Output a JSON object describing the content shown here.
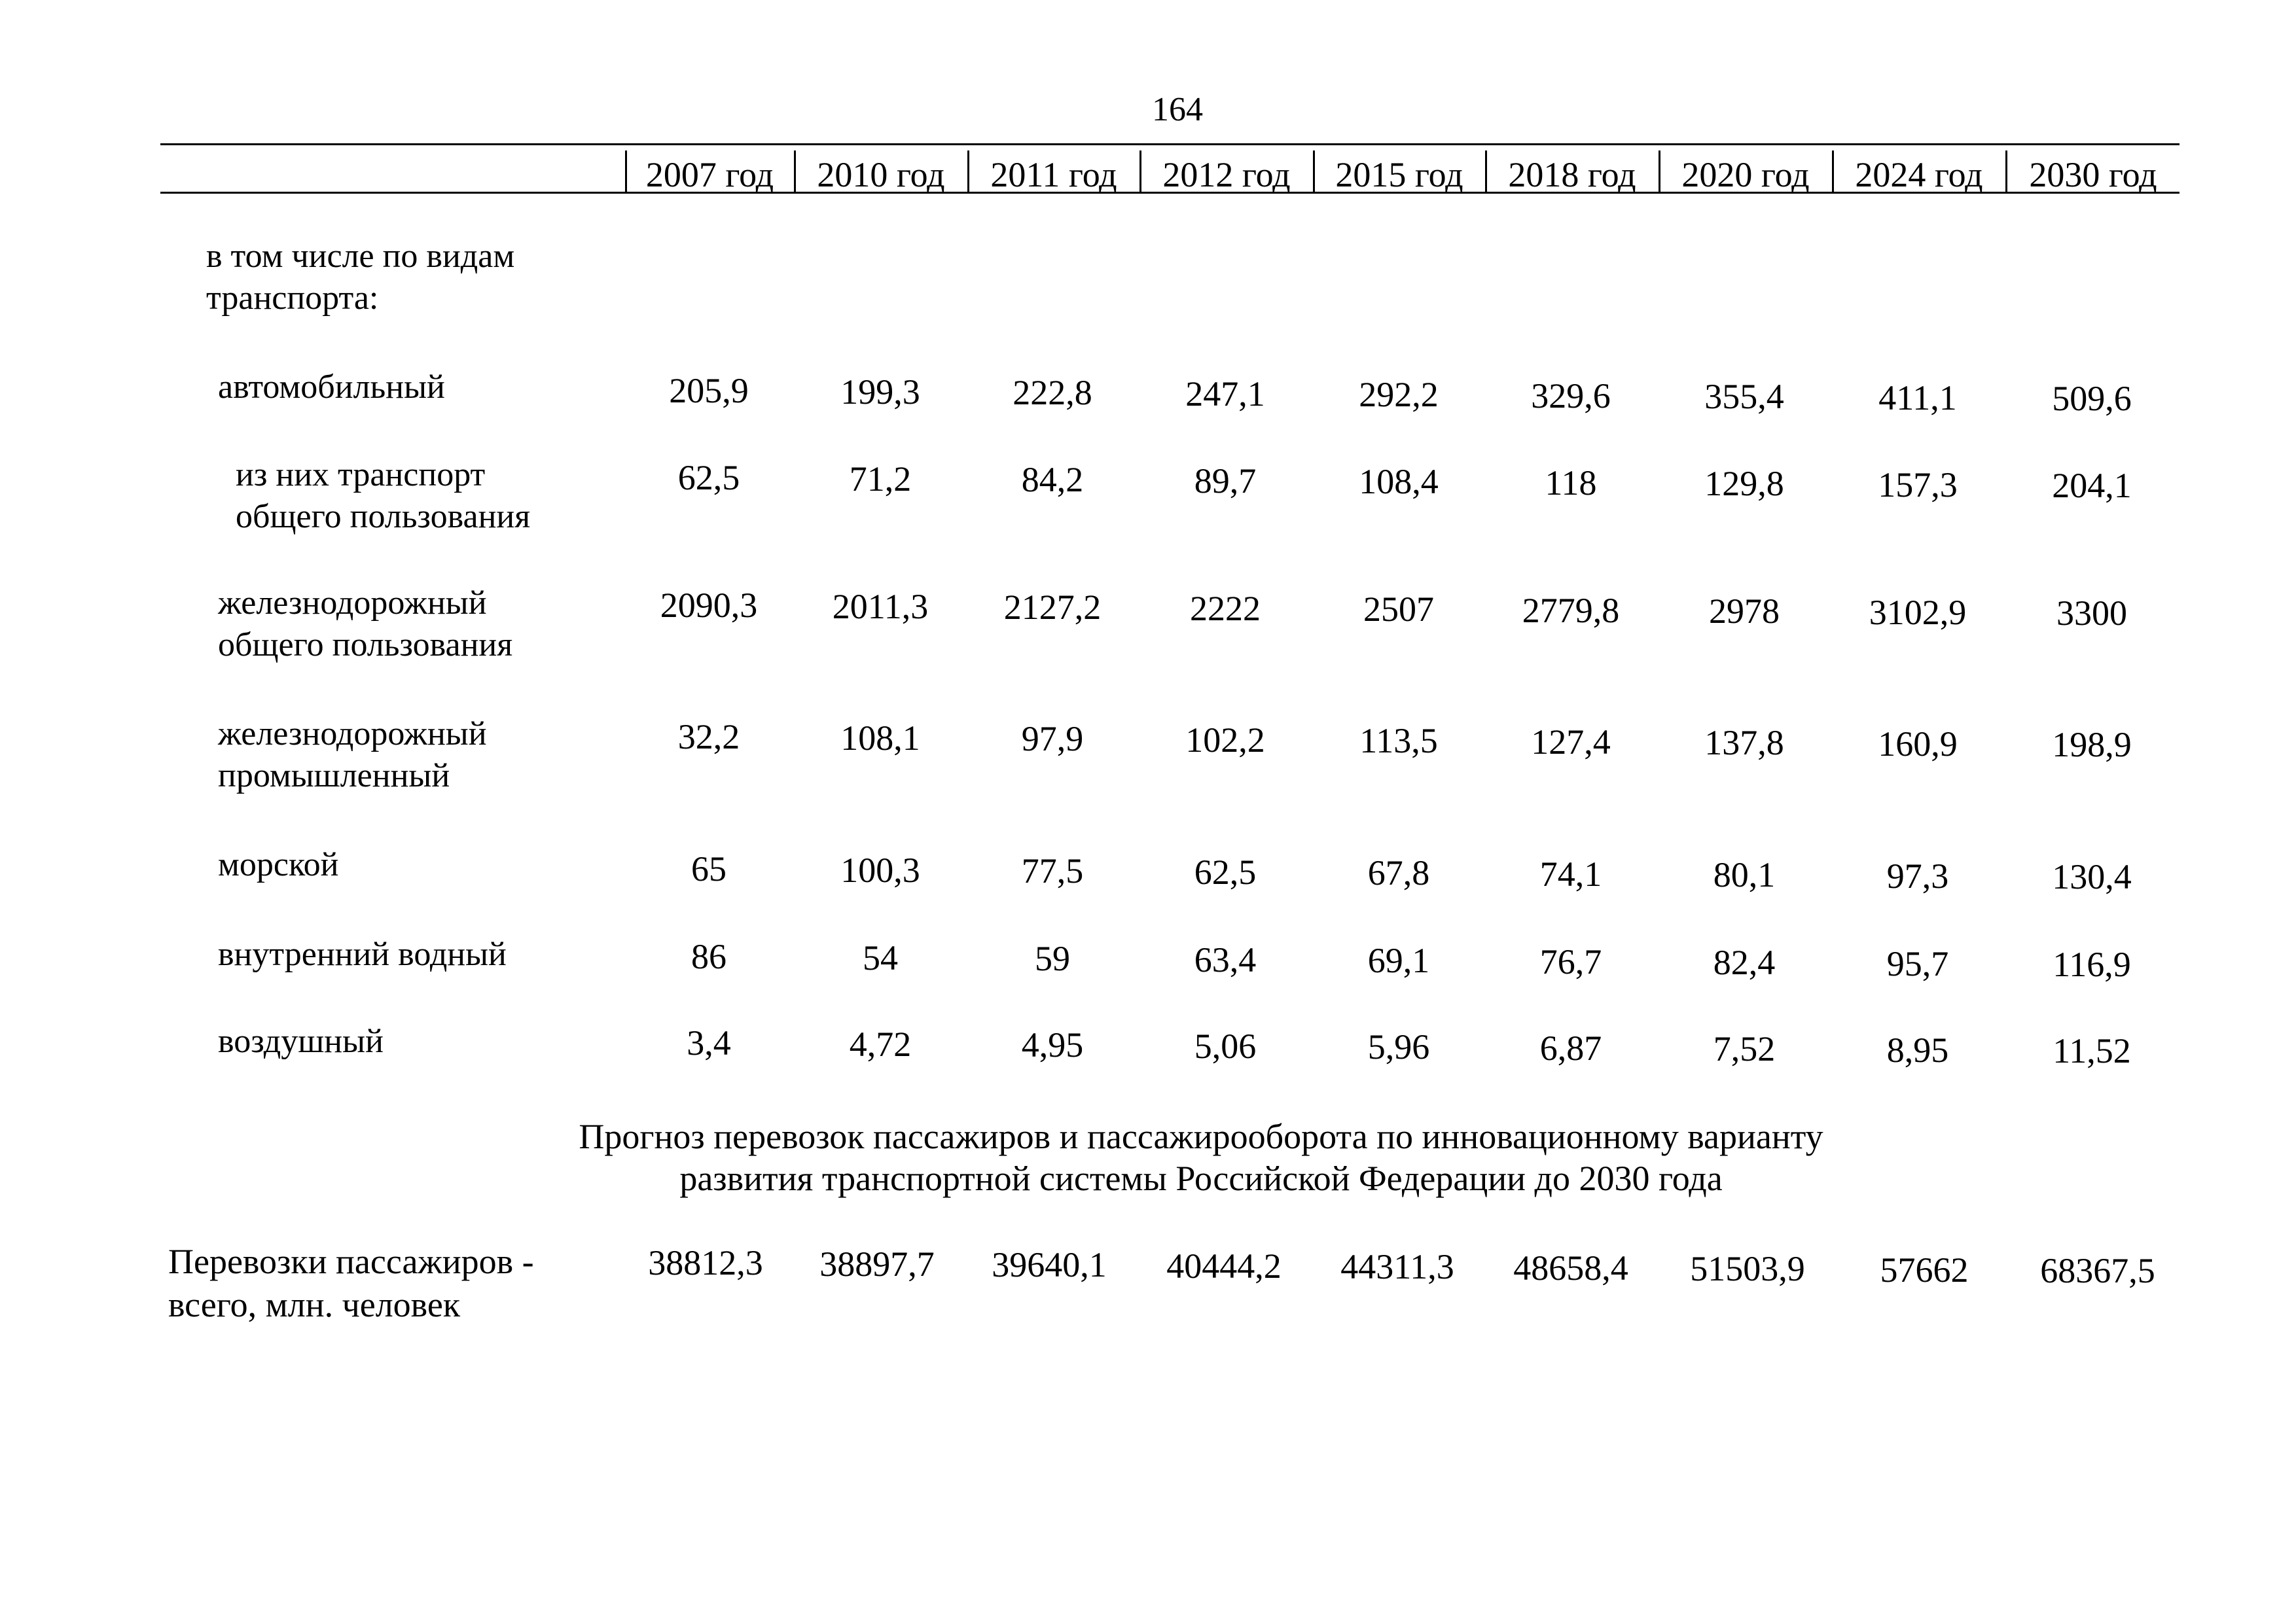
{
  "page_number": "164",
  "years": [
    "2007 год",
    "2010 год",
    "2011 год",
    "2012 год",
    "2015 год",
    "2018 год",
    "2020 год",
    "2024 год",
    "2030 год"
  ],
  "subheading": [
    "в том числе по видам",
    "транспорта:"
  ],
  "rows": [
    {
      "label": [
        "автомобильный"
      ],
      "values": [
        "205,9",
        "199,3",
        "222,8",
        "247,1",
        "292,2",
        "329,6",
        "355,4",
        "411,1",
        "509,6"
      ]
    },
    {
      "label": [
        "из них транспорт",
        "общего пользования"
      ],
      "values": [
        "62,5",
        "71,2",
        "84,2",
        "89,7",
        "108,4",
        "118",
        "129,8",
        "157,3",
        "204,1"
      ]
    },
    {
      "label": [
        "железнодорожный",
        "общего пользования"
      ],
      "values": [
        "2090,3",
        "2011,3",
        "2127,2",
        "2222",
        "2507",
        "2779,8",
        "2978",
        "3102,9",
        "3300"
      ]
    },
    {
      "label": [
        "железнодорожный",
        "промышленный"
      ],
      "values": [
        "32,2",
        "108,1",
        "97,9",
        "102,2",
        "113,5",
        "127,4",
        "137,8",
        "160,9",
        "198,9"
      ]
    },
    {
      "label": [
        "морской"
      ],
      "values": [
        "65",
        "100,3",
        "77,5",
        "62,5",
        "67,8",
        "74,1",
        "80,1",
        "97,3",
        "130,4"
      ]
    },
    {
      "label": [
        "внутренний водный"
      ],
      "values": [
        "86",
        "54",
        "59",
        "63,4",
        "69,1",
        "76,7",
        "82,4",
        "95,7",
        "116,9"
      ]
    },
    {
      "label": [
        "воздушный"
      ],
      "values": [
        "3,4",
        "4,72",
        "4,95",
        "5,06",
        "5,96",
        "6,87",
        "7,52",
        "8,95",
        "11,52"
      ]
    }
  ],
  "section_title": [
    "Прогноз перевозок пассажиров и пассажирооборота по инновационному варианту",
    "развития транспортной системы Российской Федерации до 2030 года"
  ],
  "passenger_row": {
    "label": [
      "Перевозки пассажиров -",
      "всего, млн. человек"
    ],
    "values": [
      "38812,3",
      "38897,7",
      "39640,1",
      "40444,2",
      "44311,3",
      "48658,4",
      "51503,9",
      "57662",
      "68367,5"
    ]
  }
}
